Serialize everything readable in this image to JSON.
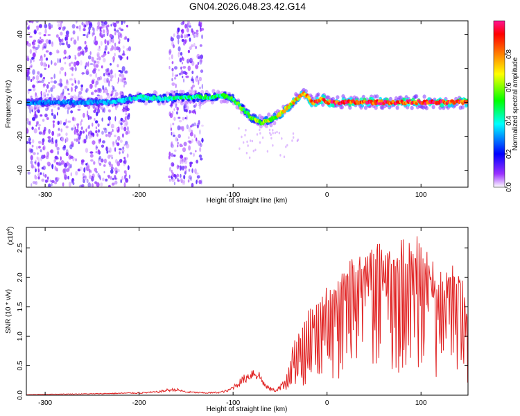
{
  "chart_data": [
    {
      "type": "heatmap",
      "title": "GN04.2026.048.23.42.G14",
      "xlabel": "Height of straight line (km)",
      "ylabel": "Frequency (Hz)",
      "xlim": [
        -320,
        150
      ],
      "ylim": [
        -50,
        48
      ],
      "xticks": [
        -300,
        -200,
        -100,
        0,
        100
      ],
      "yticks": [
        -40,
        -20,
        0,
        20,
        40
      ],
      "colorbar": {
        "label": "Normalized spectral amplitude",
        "range": [
          0,
          1
        ],
        "ticks": [
          "0.0",
          "0.2",
          "0.4",
          "0.6",
          "0.8"
        ],
        "colormap": [
          "#ffffff",
          "#9b30ff",
          "#0000ff",
          "#00ffff",
          "#00ff00",
          "#ffff00",
          "#ff8000",
          "#ff0000",
          "#ff1493"
        ]
      },
      "ridge": {
        "height_km": [
          -320,
          -290,
          -260,
          -230,
          -200,
          -170,
          -150,
          -130,
          -110,
          -100,
          -90,
          -80,
          -70,
          -60,
          -55,
          -50,
          -40,
          -30,
          -25,
          -20,
          -15,
          -10,
          -5,
          0,
          20,
          50,
          80,
          110,
          150
        ],
        "frequency_hz": [
          0,
          0,
          0,
          0,
          3,
          2,
          3,
          3,
          4,
          2,
          -4,
          -9,
          -12,
          -10,
          -9,
          -7,
          -2,
          3,
          5,
          3,
          -1,
          1,
          2,
          0,
          0,
          0,
          0,
          0,
          0
        ],
        "amplitude": [
          0.3,
          0.3,
          0.32,
          0.35,
          0.42,
          0.45,
          0.48,
          0.5,
          0.52,
          0.55,
          0.58,
          0.62,
          0.64,
          0.66,
          0.68,
          0.7,
          0.74,
          0.78,
          0.82,
          0.85,
          0.88,
          0.9,
          0.93,
          0.95,
          0.96,
          0.97,
          0.97,
          0.97,
          0.97
        ]
      },
      "noise_bands_km": [
        [
          -320,
          -210
        ],
        [
          -168,
          -132
        ]
      ]
    },
    {
      "type": "line",
      "xlabel": "Height of straight line (km)",
      "ylabel": "SNR (10 * v/v)",
      "scale_label": "(x10",
      "scale_exponent": "4",
      "xlim": [
        -320,
        150
      ],
      "ylim": [
        0,
        2.85
      ],
      "xticks": [
        -300,
        -200,
        -100,
        0,
        100
      ],
      "yticks": [
        "0.0",
        "0.5",
        "1.0",
        "1.5",
        "2.0",
        "2.5"
      ],
      "color": "#e02020",
      "series": [
        {
          "x": [
            -320,
            -300,
            -250,
            -200,
            -180,
            -170,
            -160,
            -150,
            -130,
            -115,
            -105,
            -95,
            -85,
            -78,
            -72,
            -65,
            -55,
            -45,
            -40,
            -35,
            -30,
            -25,
            -20,
            -15,
            -10,
            -5,
            0,
            10,
            20,
            30,
            40,
            50,
            60,
            70,
            80,
            90,
            100,
            110,
            120,
            130,
            140,
            150
          ],
          "y": [
            0.01,
            0.02,
            0.03,
            0.05,
            0.07,
            0.11,
            0.12,
            0.07,
            0.05,
            0.06,
            0.1,
            0.25,
            0.4,
            0.5,
            0.42,
            0.18,
            0.1,
            0.25,
            0.55,
            0.85,
            1.05,
            1.1,
            1.35,
            1.45,
            1.55,
            1.65,
            1.7,
            1.8,
            2.1,
            2.3,
            2.25,
            2.55,
            2.45,
            2.35,
            2.5,
            2.4,
            2.6,
            2.2,
            1.9,
            2.05,
            2.1,
            1.35
          ]
        }
      ]
    }
  ]
}
